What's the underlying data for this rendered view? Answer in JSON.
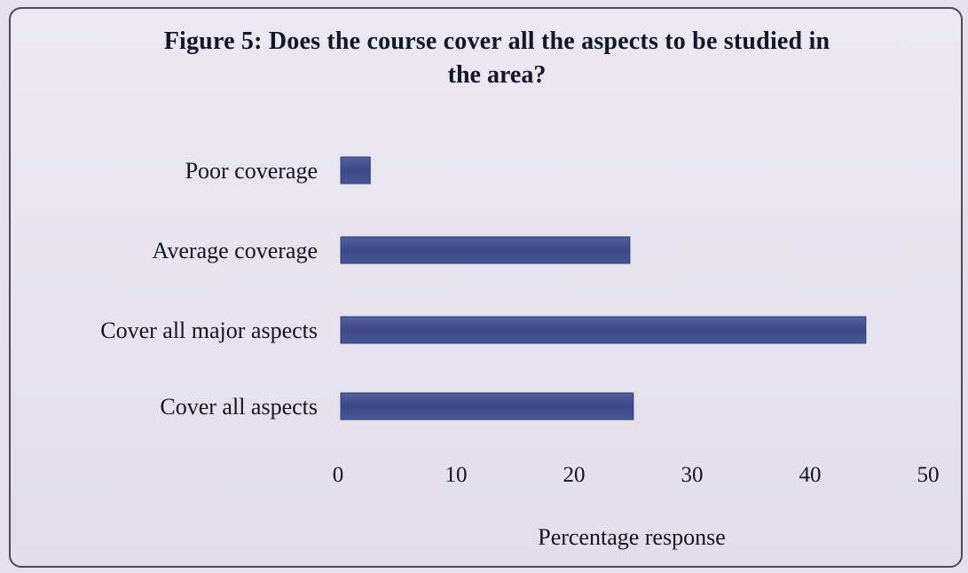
{
  "chart_data": {
    "type": "bar",
    "orientation": "horizontal",
    "title": "Figure 5: Does the course cover all the aspects to be studied in the area?",
    "title_line1": "Figure 5: Does the course cover all the aspects to be studied in",
    "title_line2": "the area?",
    "categories": [
      "Poor coverage",
      "Average coverage",
      "Cover all major aspects",
      "Cover all aspects"
    ],
    "values": [
      2.5,
      24.5,
      44.5,
      24.8
    ],
    "xlabel": "Percentage response",
    "ylabel": "",
    "xlim": [
      0,
      50
    ],
    "xticks": [
      "0",
      "10",
      "20",
      "30",
      "40",
      "50"
    ],
    "bar_color": "#3f4c8c",
    "grid": false,
    "legend": "none"
  }
}
